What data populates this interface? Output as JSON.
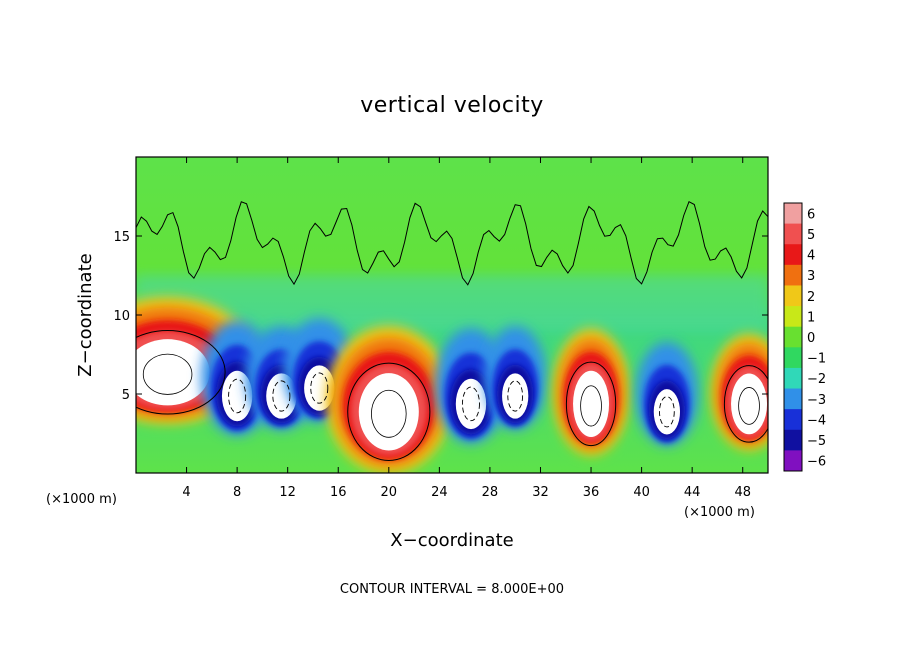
{
  "chart_data": {
    "type": "heatmap",
    "title": "vertical velocity",
    "xlabel": "X−coordinate",
    "ylabel": "Z−coordinate",
    "x_unit_left": "(×1000 m)",
    "x_unit_right": "(×1000 m)",
    "xlim": [
      0,
      50
    ],
    "ylim": [
      0,
      20
    ],
    "x_ticks": [
      4,
      8,
      12,
      16,
      20,
      24,
      28,
      32,
      36,
      40,
      44,
      48
    ],
    "y_ticks": [
      5,
      10,
      15
    ],
    "colorbar": {
      "levels": [
        6,
        5,
        4,
        3,
        2,
        1,
        0,
        -1,
        -2,
        -3,
        -4,
        -5,
        -6
      ],
      "colors": [
        "#f0a0a0",
        "#f05050",
        "#e81818",
        "#f07010",
        "#f0c818",
        "#c8e818",
        "#68e030",
        "#30d860",
        "#30d8b8",
        "#3090e8",
        "#1830d8",
        "#1010a0",
        "#8010c0"
      ]
    },
    "footnote": "CONTOUR INTERVAL = 8.000E+00",
    "cells": [
      {
        "x": 2.5,
        "z": 6.5,
        "w": 3.5,
        "value": 12
      },
      {
        "x": 8.0,
        "z": 5.0,
        "w": 1.5,
        "value": -10
      },
      {
        "x": 11.5,
        "z": 5.0,
        "w": 1.5,
        "value": -9
      },
      {
        "x": 14.5,
        "z": 5.5,
        "w": 1.5,
        "value": -9
      },
      {
        "x": 20.0,
        "z": 4.0,
        "w": 2.5,
        "value": 14
      },
      {
        "x": 26.5,
        "z": 4.5,
        "w": 1.5,
        "value": -10
      },
      {
        "x": 30.0,
        "z": 5.0,
        "w": 1.3,
        "value": -9
      },
      {
        "x": 36.0,
        "z": 4.5,
        "w": 1.5,
        "value": 12
      },
      {
        "x": 42.0,
        "z": 4.0,
        "w": 1.3,
        "value": -9
      },
      {
        "x": 48.5,
        "z": 4.5,
        "w": 1.5,
        "value": 11
      }
    ]
  }
}
